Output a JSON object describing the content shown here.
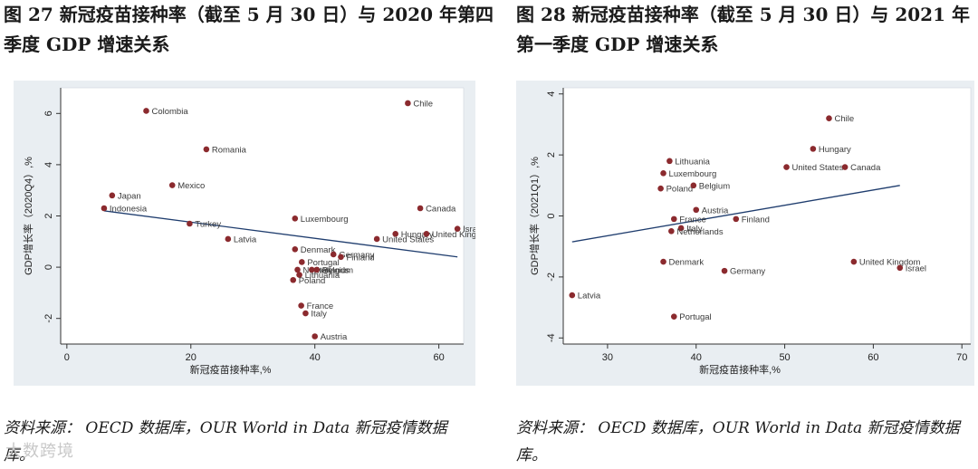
{
  "figure_left": {
    "title": "图 27  新冠疫苗接种率（截至 5 月 30 日）与 2020 年第四季度 GDP 增速关系",
    "source": "资料来源：  OECD 数据库，OUR World in Data 新冠疫情数据库。"
  },
  "figure_right": {
    "title": "图 28  新冠疫苗接种率（截至 5 月 30 日）与 2021 年第一季度 GDP 增速关系",
    "source": "资料来源：  OECD 数据库，OUR World in Data 新冠疫情数据库。"
  },
  "watermark": "大数跨境",
  "colors": {
    "point": "#8b2a2e",
    "line": "#1f3d6e",
    "panel": "#e9eef2",
    "axis": "#333333"
  },
  "chart_data": [
    {
      "type": "scatter",
      "title": "图 27  新冠疫苗接种率（截至 5 月 30 日）与 2020 年第四季度 GDP 增速关系",
      "xlabel": "新冠疫苗接种率,%",
      "ylabel": "GDP增长率（2020Q4）,%",
      "xlim": [
        -1,
        64
      ],
      "ylim": [
        -3,
        7
      ],
      "xticks": [
        0,
        20,
        40,
        60
      ],
      "yticks": [
        -2,
        0,
        2,
        4,
        6
      ],
      "fit_line": {
        "x": [
          6,
          63
        ],
        "y": [
          2.2,
          0.4
        ]
      },
      "points": [
        {
          "label": "Colombia",
          "x": 12.8,
          "y": 6.1
        },
        {
          "label": "Chile",
          "x": 55.0,
          "y": 6.4
        },
        {
          "label": "Romania",
          "x": 22.5,
          "y": 4.6
        },
        {
          "label": "Mexico",
          "x": 17.0,
          "y": 3.2
        },
        {
          "label": "Japan",
          "x": 7.3,
          "y": 2.8
        },
        {
          "label": "Indonesia",
          "x": 6.0,
          "y": 2.3
        },
        {
          "label": "Turkey",
          "x": 19.8,
          "y": 1.7
        },
        {
          "label": "Latvia",
          "x": 26.0,
          "y": 1.1
        },
        {
          "label": "Luxembourg",
          "x": 36.8,
          "y": 1.9
        },
        {
          "label": "Canada",
          "x": 57.0,
          "y": 2.3
        },
        {
          "label": "Israel",
          "x": 63.0,
          "y": 1.5
        },
        {
          "label": "Hungary",
          "x": 53.0,
          "y": 1.3
        },
        {
          "label": "United Kingdom",
          "x": 58.0,
          "y": 1.3
        },
        {
          "label": "United States",
          "x": 50.0,
          "y": 1.1
        },
        {
          "label": "Denmark",
          "x": 36.8,
          "y": 0.7
        },
        {
          "label": "Germany",
          "x": 43.0,
          "y": 0.5
        },
        {
          "label": "Finland",
          "x": 44.2,
          "y": 0.4
        },
        {
          "label": "Portugal",
          "x": 37.9,
          "y": 0.2
        },
        {
          "label": "Netherlands",
          "x": 37.2,
          "y": -0.1
        },
        {
          "label": "Italy",
          "x": 39.5,
          "y": -0.1
        },
        {
          "label": "Belgium",
          "x": 40.3,
          "y": -0.1
        },
        {
          "label": "Lithuania",
          "x": 37.5,
          "y": -0.3
        },
        {
          "label": "Poland",
          "x": 36.5,
          "y": -0.5
        },
        {
          "label": "France",
          "x": 37.8,
          "y": -1.5
        },
        {
          "label": "Italy",
          "x": 38.5,
          "y": -1.8
        },
        {
          "label": "Austria",
          "x": 40.0,
          "y": -2.7
        }
      ]
    },
    {
      "type": "scatter",
      "title": "图 28  新冠疫苗接种率（截至 5 月 30 日）与 2021 年第一季度 GDP 增速关系",
      "xlabel": "新冠疫苗接种率,%",
      "ylabel": "GDP增长率（2021Q1）,%",
      "xlim": [
        25,
        71
      ],
      "ylim": [
        -4.2,
        4.2
      ],
      "xticks": [
        30,
        40,
        50,
        60,
        70
      ],
      "yticks": [
        -4,
        -2,
        0,
        2,
        4
      ],
      "fit_line": {
        "x": [
          26,
          63
        ],
        "y": [
          -0.85,
          1.0
        ]
      },
      "points": [
        {
          "label": "Chile",
          "x": 55.0,
          "y": 3.2
        },
        {
          "label": "Hungary",
          "x": 53.2,
          "y": 2.2
        },
        {
          "label": "Lithuania",
          "x": 37.0,
          "y": 1.8
        },
        {
          "label": "Luxembourg",
          "x": 36.3,
          "y": 1.4
        },
        {
          "label": "United States",
          "x": 50.2,
          "y": 1.6
        },
        {
          "label": "Canada",
          "x": 56.8,
          "y": 1.6
        },
        {
          "label": "Poland",
          "x": 36.0,
          "y": 0.9
        },
        {
          "label": "Belgium",
          "x": 39.7,
          "y": 1.0
        },
        {
          "label": "Austria",
          "x": 40.0,
          "y": 0.2
        },
        {
          "label": "France",
          "x": 37.5,
          "y": -0.1
        },
        {
          "label": "Finland",
          "x": 44.5,
          "y": -0.1
        },
        {
          "label": "Italy",
          "x": 38.3,
          "y": -0.4
        },
        {
          "label": "Netherlands",
          "x": 37.2,
          "y": -0.5
        },
        {
          "label": "Denmark",
          "x": 36.3,
          "y": -1.5
        },
        {
          "label": "Germany",
          "x": 43.2,
          "y": -1.8
        },
        {
          "label": "United Kingdom",
          "x": 57.8,
          "y": -1.5
        },
        {
          "label": "Israel",
          "x": 63.0,
          "y": -1.7
        },
        {
          "label": "Latvia",
          "x": 26.0,
          "y": -2.6
        },
        {
          "label": "Portugal",
          "x": 37.5,
          "y": -3.3
        }
      ]
    }
  ]
}
